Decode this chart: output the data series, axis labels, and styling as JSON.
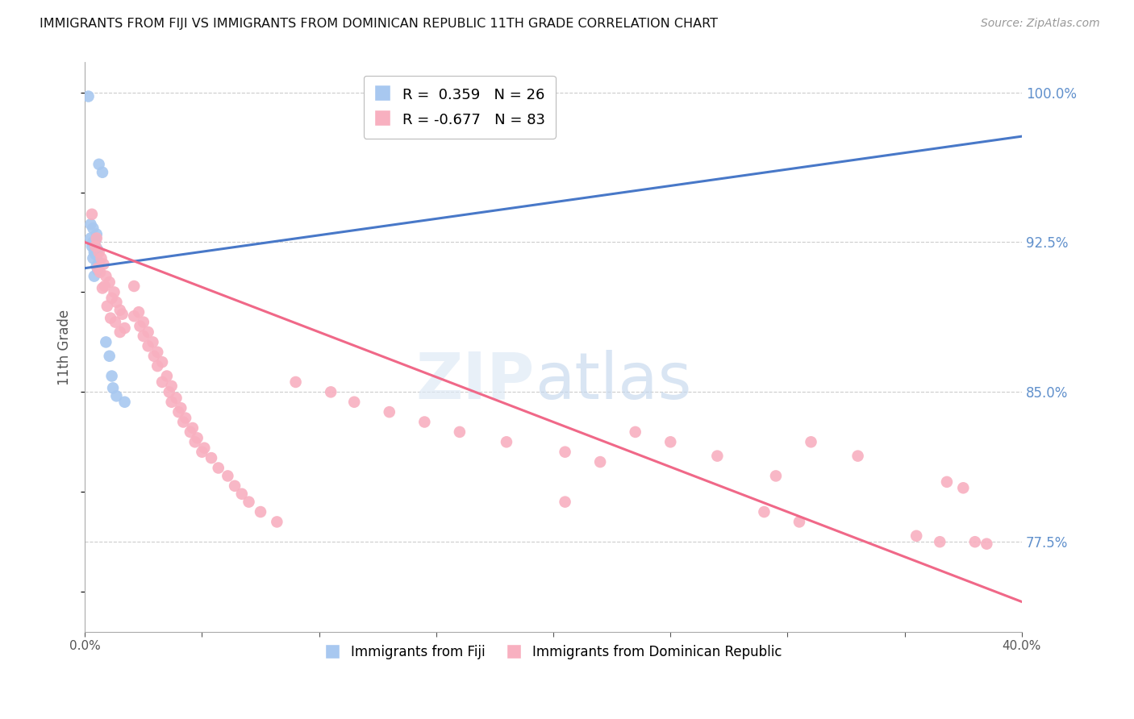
{
  "title": "IMMIGRANTS FROM FIJI VS IMMIGRANTS FROM DOMINICAN REPUBLIC 11TH GRADE CORRELATION CHART",
  "source": "Source: ZipAtlas.com",
  "ylabel": "11th Grade",
  "right_yticks": [
    100.0,
    92.5,
    85.0,
    77.5
  ],
  "xlim": [
    0.0,
    40.0
  ],
  "ylim": [
    73.0,
    101.5
  ],
  "fiji_R": 0.359,
  "fiji_N": 26,
  "dr_R": -0.677,
  "dr_N": 83,
  "fiji_color": "#A8C8F0",
  "dr_color": "#F8B0C0",
  "fiji_line_color": "#4878C8",
  "dr_line_color": "#F06888",
  "background_color": "#FFFFFF",
  "grid_color": "#CCCCCC",
  "title_color": "#111111",
  "right_axis_color": "#6090CC",
  "fiji_scatter": [
    [
      0.15,
      99.8
    ],
    [
      0.6,
      96.4
    ],
    [
      0.75,
      96.0
    ],
    [
      0.25,
      93.4
    ],
    [
      0.35,
      93.2
    ],
    [
      0.5,
      92.9
    ],
    [
      0.25,
      92.7
    ],
    [
      0.45,
      92.6
    ],
    [
      0.35,
      92.5
    ],
    [
      0.4,
      92.4
    ],
    [
      0.3,
      92.3
    ],
    [
      0.5,
      92.2
    ],
    [
      0.55,
      92.1
    ],
    [
      0.4,
      92.0
    ],
    [
      0.45,
      91.9
    ],
    [
      0.35,
      91.7
    ],
    [
      0.6,
      91.5
    ],
    [
      0.5,
      91.3
    ],
    [
      0.55,
      91.1
    ],
    [
      0.4,
      90.8
    ],
    [
      0.9,
      87.5
    ],
    [
      1.05,
      86.8
    ],
    [
      1.15,
      85.8
    ],
    [
      1.2,
      85.2
    ],
    [
      1.35,
      84.8
    ],
    [
      1.7,
      84.5
    ]
  ],
  "dr_scatter": [
    [
      0.3,
      93.9
    ],
    [
      0.5,
      92.7
    ],
    [
      0.45,
      92.3
    ],
    [
      0.6,
      92.0
    ],
    [
      0.7,
      91.7
    ],
    [
      0.8,
      91.4
    ],
    [
      0.55,
      91.2
    ],
    [
      0.65,
      91.0
    ],
    [
      0.9,
      90.8
    ],
    [
      1.05,
      90.5
    ],
    [
      0.85,
      90.3
    ],
    [
      0.75,
      90.2
    ],
    [
      1.25,
      90.0
    ],
    [
      1.15,
      89.7
    ],
    [
      1.35,
      89.5
    ],
    [
      0.95,
      89.3
    ],
    [
      1.5,
      89.1
    ],
    [
      1.6,
      88.9
    ],
    [
      1.1,
      88.7
    ],
    [
      1.3,
      88.5
    ],
    [
      1.7,
      88.2
    ],
    [
      1.5,
      88.0
    ],
    [
      2.1,
      90.3
    ],
    [
      2.3,
      89.0
    ],
    [
      2.1,
      88.8
    ],
    [
      2.5,
      88.5
    ],
    [
      2.35,
      88.3
    ],
    [
      2.7,
      88.0
    ],
    [
      2.5,
      87.8
    ],
    [
      2.9,
      87.5
    ],
    [
      2.7,
      87.3
    ],
    [
      3.1,
      87.0
    ],
    [
      2.95,
      86.8
    ],
    [
      3.3,
      86.5
    ],
    [
      3.1,
      86.3
    ],
    [
      3.5,
      85.8
    ],
    [
      3.3,
      85.5
    ],
    [
      3.7,
      85.3
    ],
    [
      3.6,
      85.0
    ],
    [
      3.9,
      84.7
    ],
    [
      3.7,
      84.5
    ],
    [
      4.1,
      84.2
    ],
    [
      4.0,
      84.0
    ],
    [
      4.3,
      83.7
    ],
    [
      4.2,
      83.5
    ],
    [
      4.6,
      83.2
    ],
    [
      4.5,
      83.0
    ],
    [
      4.8,
      82.7
    ],
    [
      4.7,
      82.5
    ],
    [
      5.1,
      82.2
    ],
    [
      5.0,
      82.0
    ],
    [
      5.4,
      81.7
    ],
    [
      5.7,
      81.2
    ],
    [
      6.1,
      80.8
    ],
    [
      6.4,
      80.3
    ],
    [
      6.7,
      79.9
    ],
    [
      7.0,
      79.5
    ],
    [
      7.5,
      79.0
    ],
    [
      8.2,
      78.5
    ],
    [
      9.0,
      85.5
    ],
    [
      10.5,
      85.0
    ],
    [
      11.5,
      84.5
    ],
    [
      13.0,
      84.0
    ],
    [
      14.5,
      83.5
    ],
    [
      16.0,
      83.0
    ],
    [
      18.0,
      82.5
    ],
    [
      20.5,
      82.0
    ],
    [
      22.0,
      81.5
    ],
    [
      20.5,
      79.5
    ],
    [
      23.5,
      83.0
    ],
    [
      25.0,
      82.5
    ],
    [
      27.0,
      81.8
    ],
    [
      29.5,
      80.8
    ],
    [
      29.0,
      79.0
    ],
    [
      30.5,
      78.5
    ],
    [
      31.0,
      82.5
    ],
    [
      33.0,
      81.8
    ],
    [
      35.5,
      77.8
    ],
    [
      36.5,
      77.5
    ],
    [
      36.8,
      80.5
    ],
    [
      37.5,
      80.2
    ],
    [
      38.0,
      77.5
    ],
    [
      38.5,
      77.4
    ]
  ],
  "fiji_line": [
    [
      0,
      91.2
    ],
    [
      40,
      97.8
    ]
  ],
  "dr_line": [
    [
      0,
      92.5
    ],
    [
      40,
      74.5
    ]
  ]
}
